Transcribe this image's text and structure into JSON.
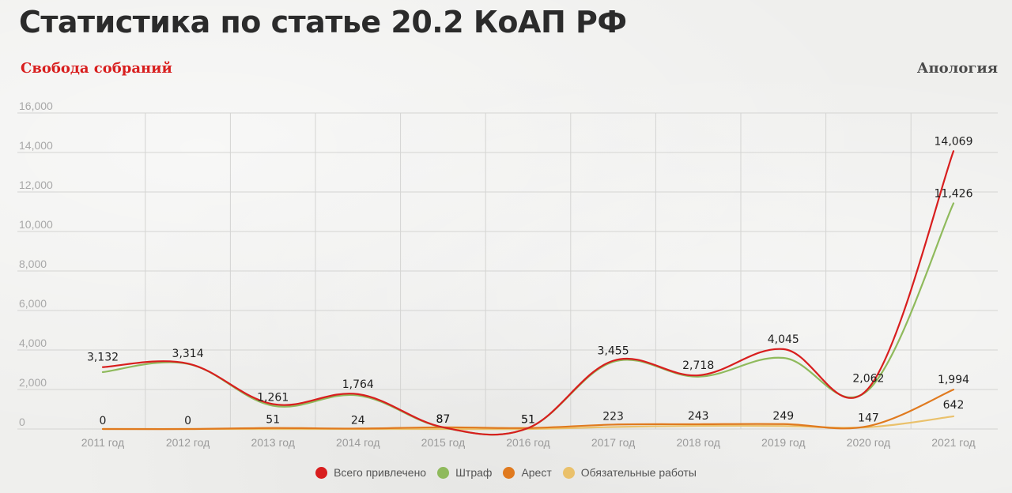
{
  "header": {
    "title": "Статистика по статье 20.2 КоАП РФ",
    "subtitle": "Свобода собраний",
    "brand": "Апология"
  },
  "chart_data": {
    "type": "line",
    "categories": [
      "2011 год",
      "2012 год",
      "2013 год",
      "2014 год",
      "2015 год",
      "2016 год",
      "2017 год",
      "2018 год",
      "2019 год",
      "2020 год",
      "2021 год"
    ],
    "ylim": [
      0,
      16000
    ],
    "yticks": [
      0,
      2000,
      4000,
      6000,
      8000,
      10000,
      12000,
      14000,
      16000
    ],
    "ytick_labels": [
      "0",
      "2,000",
      "4,000",
      "6,000",
      "8,000",
      "10,000",
      "12,000",
      "14,000",
      "16,000"
    ],
    "grid": true,
    "legend_position": "bottom",
    "series": [
      {
        "name": "Всего привлечено",
        "color": "#d81e1e",
        "values": [
          3132,
          3314,
          1261,
          1764,
          87,
          51,
          3455,
          2718,
          4045,
          2062,
          14069
        ],
        "labels": [
          "3,132",
          "3,314",
          "1,261",
          "1,764",
          "87",
          "51",
          "3,455",
          "2,718",
          "4,045",
          "2,062",
          "14,069"
        ]
      },
      {
        "name": "Штраф",
        "color": "#8fba5c",
        "values": [
          2880,
          3300,
          1180,
          1700,
          75,
          45,
          3400,
          2650,
          3600,
          1980,
          11426
        ],
        "labels": [
          "",
          "",
          "",
          "",
          "",
          "",
          "",
          "",
          "",
          "",
          "11,426"
        ]
      },
      {
        "name": "Арест",
        "color": "#e07a1f",
        "values": [
          0,
          0,
          51,
          24,
          87,
          51,
          223,
          243,
          249,
          147,
          1994
        ],
        "labels": [
          "0",
          "0",
          "51",
          "24",
          "87",
          "51",
          "223",
          "243",
          "249",
          "147",
          "1,994"
        ]
      },
      {
        "name": "Обязательные работы",
        "color": "#eac16b",
        "values": [
          0,
          0,
          0,
          0,
          0,
          0,
          100,
          160,
          150,
          90,
          642
        ],
        "labels": [
          "",
          "",
          "",
          "",
          "",
          "",
          "",
          "",
          "",
          "",
          "642"
        ]
      }
    ]
  }
}
